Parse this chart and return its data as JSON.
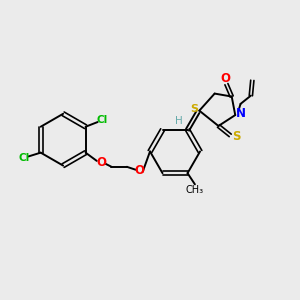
{
  "bg_color": "#ebebeb",
  "bond_color": "#000000",
  "atom_colors": {
    "Cl": "#00bb00",
    "O": "#ff0000",
    "N": "#0000ff",
    "S": "#ccaa00",
    "H": "#66aaaa",
    "C": "#000000"
  },
  "figsize": [
    3.0,
    3.0
  ],
  "dpi": 100
}
